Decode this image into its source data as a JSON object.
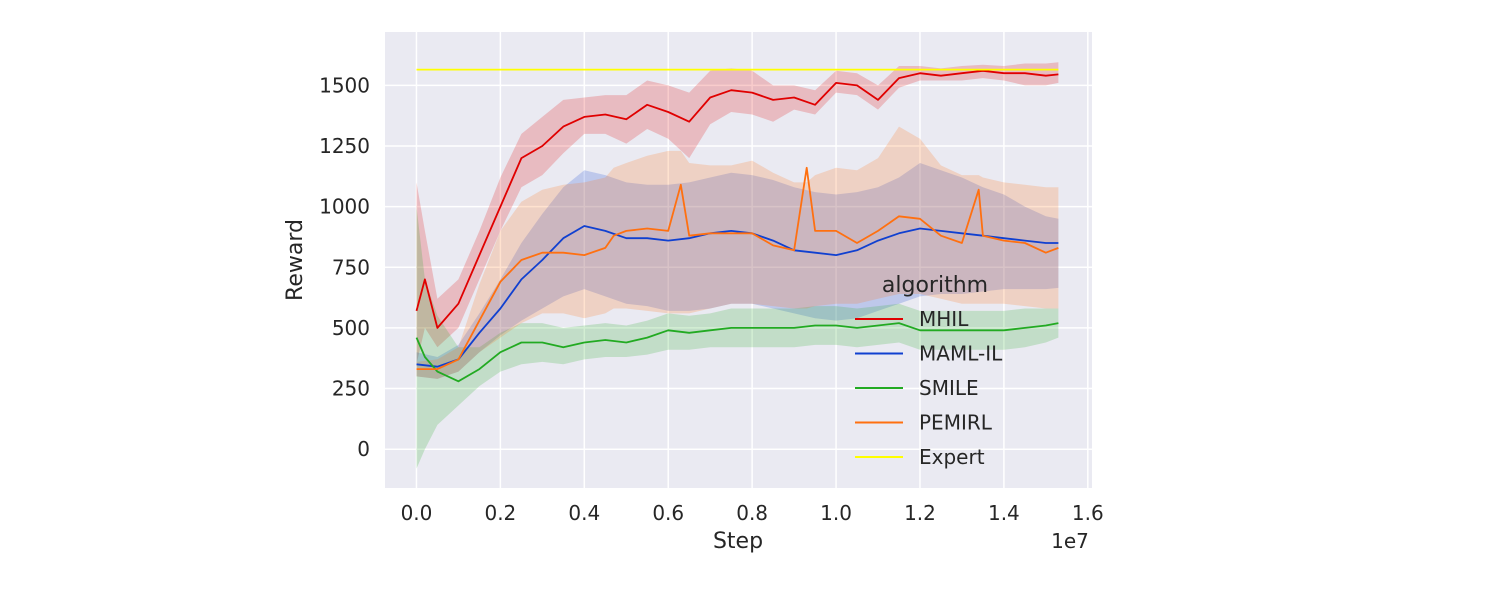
{
  "chart_data": {
    "type": "line",
    "xlabel": "Step",
    "ylabel": "Reward",
    "x_offset_label": "1e7",
    "xlim": [
      -0.075,
      1.61
    ],
    "ylim": [
      -160,
      1720
    ],
    "x_ticks": [
      0.0,
      0.2,
      0.4,
      0.6,
      0.8,
      1.0,
      1.2,
      1.4,
      1.6
    ],
    "x_tick_labels": [
      "0.0",
      "0.2",
      "0.4",
      "0.6",
      "0.8",
      "1.0",
      "1.2",
      "1.4",
      "1.6"
    ],
    "y_ticks": [
      0,
      250,
      500,
      750,
      1000,
      1250,
      1500
    ],
    "y_tick_labels": [
      "0",
      "250",
      "500",
      "750",
      "1000",
      "1250",
      "1500"
    ],
    "grid": true,
    "background": "#eaeaf2",
    "legend": {
      "title": "algorithm",
      "placement": "lower-right"
    },
    "series": [
      {
        "name": "MHIL",
        "color": "#e00000",
        "x": [
          0.0,
          0.02,
          0.05,
          0.1,
          0.15,
          0.2,
          0.25,
          0.3,
          0.35,
          0.4,
          0.45,
          0.5,
          0.55,
          0.6,
          0.65,
          0.7,
          0.75,
          0.8,
          0.85,
          0.9,
          0.95,
          1.0,
          1.05,
          1.1,
          1.15,
          1.2,
          1.25,
          1.3,
          1.35,
          1.4,
          1.45,
          1.5,
          1.53
        ],
        "y": [
          570,
          700,
          500,
          600,
          800,
          1000,
          1200,
          1250,
          1330,
          1370,
          1380,
          1360,
          1420,
          1390,
          1350,
          1450,
          1480,
          1470,
          1440,
          1450,
          1420,
          1510,
          1500,
          1440,
          1530,
          1550,
          1540,
          1550,
          1560,
          1550,
          1550,
          1540,
          1545
        ],
        "lower": [
          350,
          500,
          420,
          500,
          700,
          900,
          1080,
          1130,
          1220,
          1300,
          1300,
          1260,
          1320,
          1280,
          1200,
          1340,
          1390,
          1380,
          1350,
          1400,
          1380,
          1470,
          1460,
          1400,
          1490,
          1520,
          1520,
          1520,
          1530,
          1520,
          1500,
          1500,
          1510
        ],
        "upper": [
          1100,
          900,
          620,
          700,
          900,
          1120,
          1300,
          1370,
          1440,
          1450,
          1460,
          1460,
          1520,
          1500,
          1470,
          1560,
          1570,
          1560,
          1500,
          1500,
          1480,
          1560,
          1550,
          1500,
          1580,
          1580,
          1570,
          1580,
          1585,
          1580,
          1590,
          1590,
          1595
        ]
      },
      {
        "name": "MAML-IL",
        "color": "#1040d0",
        "x": [
          0.0,
          0.05,
          0.1,
          0.15,
          0.2,
          0.25,
          0.3,
          0.35,
          0.4,
          0.45,
          0.5,
          0.55,
          0.6,
          0.65,
          0.7,
          0.75,
          0.8,
          0.85,
          0.9,
          0.95,
          1.0,
          1.05,
          1.1,
          1.15,
          1.2,
          1.25,
          1.3,
          1.35,
          1.4,
          1.45,
          1.5,
          1.53
        ],
        "y": [
          350,
          340,
          370,
          480,
          580,
          700,
          780,
          870,
          920,
          900,
          870,
          870,
          860,
          870,
          890,
          900,
          890,
          860,
          820,
          810,
          800,
          820,
          860,
          890,
          910,
          900,
          890,
          880,
          870,
          860,
          850,
          850
        ],
        "lower": [
          300,
          290,
          320,
          400,
          470,
          530,
          580,
          630,
          660,
          630,
          600,
          590,
          570,
          570,
          580,
          600,
          600,
          580,
          560,
          540,
          530,
          540,
          570,
          600,
          630,
          640,
          640,
          650,
          660,
          660,
          660,
          665
        ],
        "upper": [
          400,
          380,
          430,
          560,
          700,
          850,
          970,
          1080,
          1150,
          1130,
          1100,
          1090,
          1090,
          1100,
          1120,
          1140,
          1130,
          1110,
          1080,
          1060,
          1050,
          1060,
          1080,
          1120,
          1180,
          1150,
          1120,
          1080,
          1050,
          1000,
          960,
          950
        ]
      },
      {
        "name": "SMILE",
        "color": "#22aa22",
        "x": [
          0.0,
          0.02,
          0.05,
          0.1,
          0.15,
          0.2,
          0.25,
          0.3,
          0.35,
          0.4,
          0.45,
          0.5,
          0.55,
          0.6,
          0.65,
          0.7,
          0.75,
          0.8,
          0.85,
          0.9,
          0.95,
          1.0,
          1.05,
          1.1,
          1.15,
          1.2,
          1.25,
          1.3,
          1.35,
          1.4,
          1.45,
          1.5,
          1.53
        ],
        "y": [
          460,
          380,
          320,
          280,
          330,
          400,
          440,
          440,
          420,
          440,
          450,
          440,
          460,
          490,
          480,
          490,
          500,
          500,
          500,
          500,
          510,
          510,
          500,
          510,
          520,
          490,
          490,
          490,
          490,
          490,
          500,
          510,
          520
        ],
        "lower": [
          -80,
          0,
          100,
          180,
          260,
          320,
          350,
          360,
          350,
          370,
          380,
          380,
          390,
          410,
          410,
          420,
          420,
          420,
          420,
          420,
          430,
          430,
          420,
          430,
          440,
          410,
          410,
          410,
          410,
          410,
          420,
          440,
          460
        ],
        "upper": [
          1000,
          700,
          550,
          420,
          420,
          480,
          520,
          520,
          500,
          510,
          520,
          510,
          530,
          560,
          550,
          560,
          580,
          580,
          580,
          580,
          590,
          590,
          580,
          590,
          600,
          570,
          570,
          570,
          570,
          570,
          580,
          580,
          580
        ]
      },
      {
        "name": "PEMIRL",
        "color": "#ff7010",
        "x": [
          0.0,
          0.05,
          0.1,
          0.15,
          0.2,
          0.25,
          0.3,
          0.35,
          0.4,
          0.45,
          0.47,
          0.5,
          0.55,
          0.6,
          0.63,
          0.65,
          0.7,
          0.75,
          0.8,
          0.85,
          0.9,
          0.93,
          0.95,
          1.0,
          1.05,
          1.1,
          1.15,
          1.2,
          1.25,
          1.3,
          1.34,
          1.35,
          1.4,
          1.45,
          1.5,
          1.53
        ],
        "y": [
          330,
          330,
          370,
          530,
          690,
          780,
          810,
          810,
          800,
          830,
          880,
          900,
          910,
          900,
          1090,
          880,
          890,
          890,
          890,
          840,
          820,
          1160,
          900,
          900,
          850,
          900,
          960,
          950,
          880,
          850,
          1070,
          880,
          860,
          850,
          810,
          830
        ],
        "lower": [
          300,
          290,
          320,
          400,
          460,
          520,
          560,
          560,
          540,
          560,
          580,
          580,
          570,
          560,
          560,
          560,
          580,
          600,
          600,
          590,
          580,
          580,
          590,
          600,
          600,
          620,
          640,
          640,
          620,
          600,
          600,
          600,
          600,
          590,
          580,
          580
        ],
        "upper": [
          360,
          370,
          420,
          680,
          900,
          1020,
          1070,
          1090,
          1100,
          1120,
          1160,
          1180,
          1210,
          1230,
          1230,
          1180,
          1170,
          1170,
          1190,
          1140,
          1100,
          1100,
          1130,
          1160,
          1150,
          1200,
          1330,
          1280,
          1170,
          1130,
          1130,
          1120,
          1100,
          1090,
          1080,
          1080
        ]
      },
      {
        "name": "Expert",
        "color": "#ffff00",
        "x": [
          0.0,
          1.53
        ],
        "y": [
          1565,
          1565
        ]
      }
    ]
  }
}
